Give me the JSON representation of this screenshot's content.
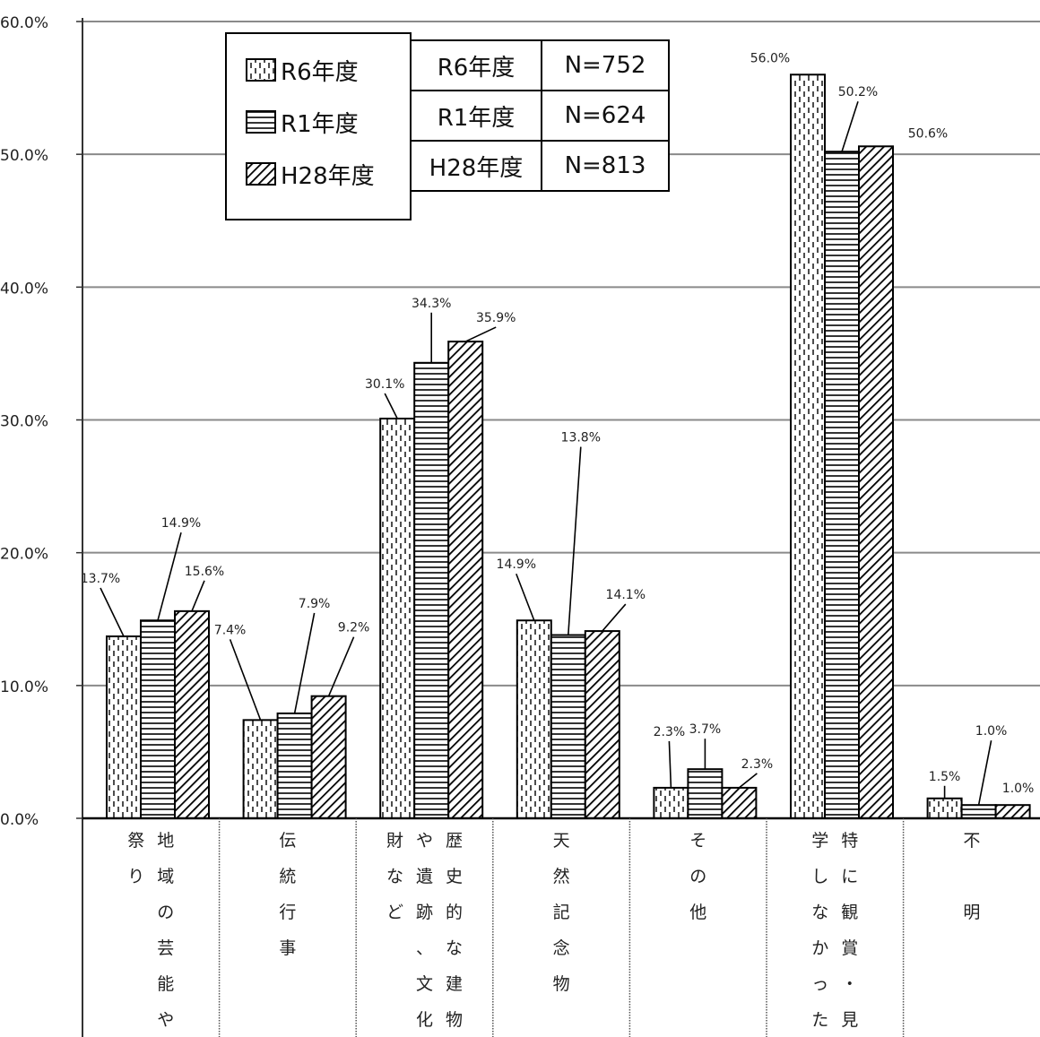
{
  "chart_data": {
    "type": "bar",
    "categories": [
      "地域の芸能や祭り",
      "伝統行事",
      "歴史的な建物や遺跡、文化財など",
      "天然記念物",
      "その他",
      "特に観賞・見学しなかった",
      "不明"
    ],
    "category_columns": [
      [
        [
          "地",
          "域",
          "の",
          "芸",
          "能",
          "や"
        ],
        [
          "祭",
          "り"
        ]
      ],
      [
        [
          "伝",
          "統",
          "行",
          "事"
        ]
      ],
      [
        [
          "歴",
          "史",
          "的",
          "な",
          "建",
          "物"
        ],
        [
          "や",
          "遺",
          "跡",
          "、",
          "文",
          "化"
        ],
        [
          "財",
          "な",
          "ど"
        ]
      ],
      [
        [
          "天",
          "然",
          "記",
          "念",
          "物"
        ]
      ],
      [
        [
          "そ",
          "の",
          "他"
        ]
      ],
      [
        [
          "特",
          "に",
          "観",
          "賞",
          "・",
          "見"
        ],
        [
          "学",
          "し",
          "な",
          "か",
          "っ",
          "た"
        ]
      ],
      [
        [
          "不",
          "",
          "明"
        ]
      ]
    ],
    "series": [
      {
        "name": "R6年度",
        "values": [
          13.7,
          7.4,
          30.1,
          14.9,
          2.3,
          56.0,
          1.5
        ],
        "labels": [
          "13.7%",
          "7.4%",
          "30.1%",
          "14.9%",
          "2.3%",
          "56.0%",
          "1.5%"
        ]
      },
      {
        "name": "R1年度",
        "values": [
          14.9,
          7.9,
          34.3,
          13.8,
          3.7,
          50.2,
          1.0
        ],
        "labels": [
          "14.9%",
          "7.9%",
          "34.3%",
          "13.8%",
          "3.7%",
          "50.2%",
          "1.0%"
        ]
      },
      {
        "name": "H28年度",
        "values": [
          15.6,
          9.2,
          35.9,
          14.1,
          2.3,
          50.6,
          1.0
        ],
        "labels": [
          "15.6%",
          "9.2%",
          "35.9%",
          "14.1%",
          "2.3%",
          "50.6%",
          "1.0%"
        ]
      }
    ],
    "ylim": [
      0,
      60
    ],
    "yticks": [
      "0.0%",
      "10.0%",
      "20.0%",
      "30.0%",
      "40.0%",
      "50.0%",
      "60.0%"
    ],
    "grid": true,
    "legend_placement": "top-left",
    "n_table": [
      {
        "year": "R6年度",
        "n": "N=752"
      },
      {
        "year": "R1年度",
        "n": "N=624"
      },
      {
        "year": "H28年度",
        "n": "N=813"
      }
    ]
  }
}
